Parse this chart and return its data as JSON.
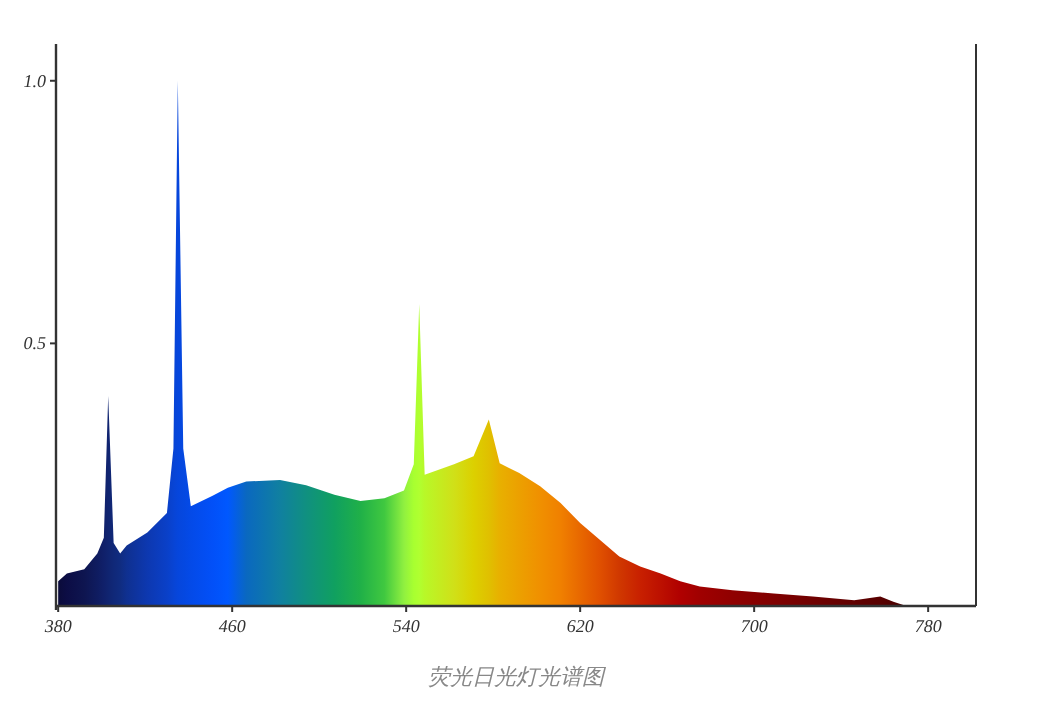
{
  "chart_data": {
    "type": "area",
    "x": [
      380,
      384,
      392,
      398,
      401,
      403,
      405.5,
      408.5,
      411.5,
      421,
      430,
      433,
      435,
      437.5,
      441,
      451,
      458,
      466.5,
      482,
      494,
      507,
      519,
      530,
      539,
      543.5,
      546,
      548.5,
      562,
      571,
      578,
      583,
      592,
      601.6,
      611,
      620,
      629,
      638,
      647.6,
      657,
      666,
      675,
      690,
      709,
      727,
      746,
      758,
      764,
      770
    ],
    "values": [
      0.047,
      0.062,
      0.07,
      0.1,
      0.13,
      0.4,
      0.12,
      0.1,
      0.115,
      0.14,
      0.177,
      0.3,
      1.0,
      0.3,
      0.19,
      0.21,
      0.225,
      0.237,
      0.24,
      0.23,
      0.212,
      0.2,
      0.205,
      0.22,
      0.27,
      0.575,
      0.25,
      0.27,
      0.285,
      0.355,
      0.272,
      0.253,
      0.228,
      0.196,
      0.158,
      0.126,
      0.094,
      0.075,
      0.062,
      0.047,
      0.037,
      0.03,
      0.024,
      0.018,
      0.011,
      0.018,
      0.008,
      0
    ],
    "colors": [
      "#0b0b3a",
      "#0c0d45",
      "#0e1550",
      "#0f1c60",
      "#10206a",
      "#102470",
      "#102878",
      "#102c80",
      "#0f3090",
      "#0d38b0",
      "#0a40c8",
      "#0844d4",
      "#0646dc",
      "#0548e0",
      "#044ae8",
      "#0250f8",
      "#0058ff",
      "#0a68c0",
      "#1080a0",
      "#109080",
      "#10a060",
      "#20b048",
      "#40c840",
      "#90f040",
      "#a8ff30",
      "#b0ff30",
      "#b8f828",
      "#d0e018",
      "#dcd000",
      "#e0c000",
      "#e8b000",
      "#eca000",
      "#f09000",
      "#f08000",
      "#e86800",
      "#e05000",
      "#d03800",
      "#c82000",
      "#bc1000",
      "#b00000",
      "#a00000",
      "#900000",
      "#800000",
      "#700000",
      "#600000",
      "#580000",
      "#500000",
      "#480000"
    ],
    "xlim": [
      379,
      802
    ],
    "ylim": [
      0,
      1.07
    ],
    "xticks": [
      380,
      460,
      540,
      620,
      700,
      780
    ],
    "yticks": [
      {
        "value": 0.5,
        "label": "0.5"
      },
      {
        "value": 1,
        "label": "1.0"
      }
    ],
    "annotations": [
      "荧光日光灯光谱图"
    ]
  }
}
